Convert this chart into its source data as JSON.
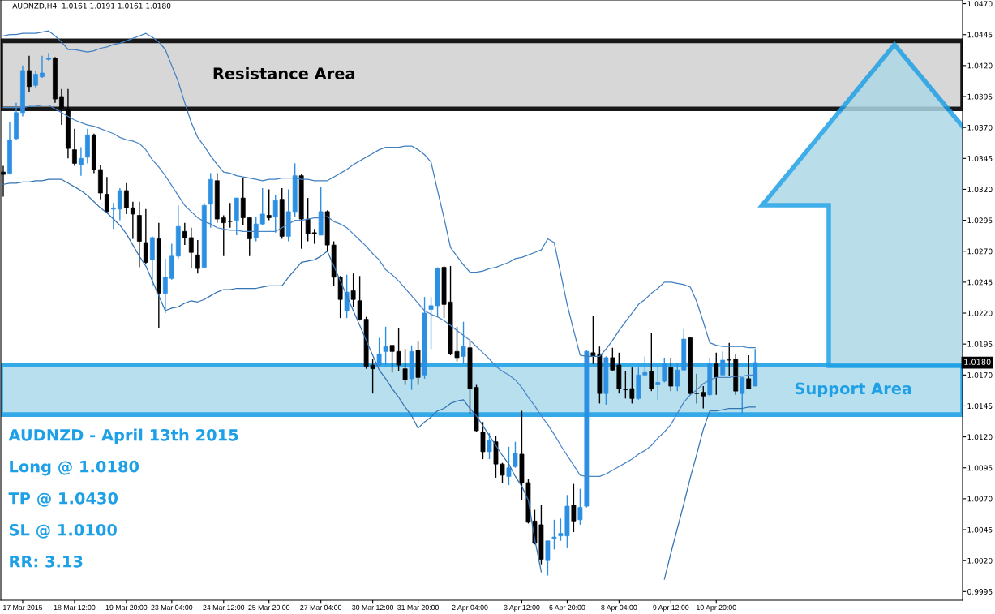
{
  "chart_data": {
    "type": "candlestick",
    "title": "AUDNZD,H4  1.0161 1.0191 1.0161 1.0180",
    "categories": [
      null,
      null,
      null,
      "17 Mar 2015",
      null,
      null,
      null,
      null,
      null,
      null,
      null,
      "18 Mar 12:00",
      null,
      null,
      null,
      null,
      null,
      null,
      null,
      "19 Mar 20:00",
      null,
      null,
      null,
      null,
      null,
      null,
      "23 Mar 04:00",
      null,
      null,
      null,
      null,
      null,
      null,
      null,
      "24 Mar 12:00",
      null,
      null,
      null,
      null,
      null,
      null,
      "25 Mar 20:00",
      null,
      null,
      null,
      null,
      null,
      null,
      null,
      "27 Mar 04:00",
      null,
      null,
      null,
      null,
      null,
      null,
      null,
      "30 Mar 12:00",
      null,
      null,
      null,
      null,
      null,
      null,
      "31 Mar 20:00",
      null,
      null,
      null,
      null,
      null,
      null,
      null,
      "2 Apr 04:00",
      null,
      null,
      null,
      null,
      null,
      null,
      null,
      "3 Apr 12:00",
      null,
      null,
      null,
      null,
      null,
      null,
      "6 Apr 20:00",
      null,
      null,
      null,
      null,
      null,
      null,
      null,
      "8 Apr 04:00",
      null,
      null,
      null,
      null,
      null,
      null,
      null,
      "9 Apr 12:00",
      null,
      null,
      null,
      null,
      null,
      null,
      "10 Apr 20:00",
      null,
      null,
      null,
      null,
      null,
      null,
      null,
      null,
      null,
      null,
      null,
      null,
      null,
      null,
      null,
      null,
      null,
      null,
      null,
      null,
      null,
      null,
      null,
      null,
      null,
      null,
      null,
      null,
      null,
      null,
      null,
      null,
      null,
      null,
      null,
      null,
      null
    ],
    "colors": [
      "#000000",
      "#2b8fe3",
      "#2b8fe3",
      "#2b8fe3",
      "#000000",
      "#2b8fe3",
      "#2b8fe3",
      "#2b8fe3",
      "#000000",
      "#000000",
      "#000000",
      "#000000",
      "#2b8fe3",
      "#2b8fe3",
      "#000000",
      "#000000",
      "#000000",
      "#2b8fe3",
      "#2b8fe3",
      "#000000",
      "#000000",
      "#000000",
      "#000000",
      "#2b8fe3",
      "#000000",
      "#2b8fe3",
      "#2b8fe3",
      "#2b8fe3",
      "#000000",
      "#000000",
      "#000000",
      "#2b8fe3",
      "#2b8fe3",
      "#000000",
      "#000000",
      "#000000",
      "#2b8fe3",
      "#000000",
      "#000000",
      "#2b8fe3",
      "#2b8fe3",
      "#000000",
      "#2b8fe3",
      "#000000",
      "#2b8fe3",
      "#2b8fe3",
      "#000000",
      "#000000",
      "#000000",
      "#2b8fe3",
      "#000000",
      "#000000",
      "#000000",
      "#2b8fe3",
      "#000000",
      "#000000",
      "#000000",
      "#000000",
      "#2b8fe3",
      "#2b8fe3",
      "#000000",
      "#000000",
      "#000000",
      "#2b8fe3",
      "#000000",
      "#2b8fe3",
      "#2b8fe3",
      "#2b8fe3",
      "#000000",
      "#000000",
      "#000000",
      "#2b8fe3",
      "#000000",
      "#000000",
      "#000000",
      "#2b8fe3",
      "#000000",
      "#000000",
      "#2b8fe3",
      "#2b8fe3",
      "#000000",
      "#000000",
      "#000000",
      "#000000",
      "#2b8fe3",
      "#2b8fe3",
      "#2b8fe3",
      "#2b8fe3",
      "#000000",
      "#2b8fe3",
      "#2b8fe3",
      "#000000",
      "#000000",
      "#2b8fe3",
      "#000000",
      "#000000",
      "#000000",
      "#000000",
      "#2b8fe3",
      "#2b8fe3",
      "#000000",
      "#2b8fe3",
      "#2b8fe3",
      "#000000",
      "#2b8fe3",
      "#2b8fe3",
      "#000000",
      "#000000",
      "#000000",
      "#2b8fe3",
      "#000000",
      "#2b8fe3",
      "#000000",
      "#000000",
      "#2b8fe3",
      "#000000",
      "#2b8fe3",
      null,
      null,
      null,
      null,
      null,
      null,
      null,
      null,
      null,
      null,
      null,
      null,
      null,
      null,
      null,
      null,
      null,
      null,
      null,
      null,
      null,
      null,
      null,
      null,
      null,
      null,
      null,
      null,
      null,
      null,
      null
    ],
    "ohlc": [
      [
        1.0334,
        1.0339,
        1.0314,
        1.0332
      ],
      [
        1.0333,
        1.0374,
        1.0332,
        1.036
      ],
      [
        1.0361,
        1.039,
        1.036,
        1.0382
      ],
      [
        1.0382,
        1.042,
        1.0379,
        1.0416
      ],
      [
        1.0416,
        1.0428,
        1.0399,
        1.0403
      ],
      [
        1.0404,
        1.0416,
        1.0402,
        1.0413
      ],
      [
        1.0411,
        1.0428,
        1.041,
        1.0414
      ],
      [
        1.0425,
        1.043,
        1.0424,
        1.0426
      ],
      [
        1.0426,
        1.0427,
        1.039,
        1.0393
      ],
      [
        1.0395,
        1.0401,
        1.0372,
        1.0385
      ],
      [
        1.0385,
        1.0401,
        1.0345,
        1.0353
      ],
      [
        1.0352,
        1.0369,
        1.0339,
        1.0341
      ],
      [
        1.034,
        1.0354,
        1.0331,
        1.0345
      ],
      [
        1.0346,
        1.0369,
        1.0341,
        1.0364
      ],
      [
        1.0364,
        1.0365,
        1.0333,
        1.0336
      ],
      [
        1.0336,
        1.034,
        1.0312,
        1.0317
      ],
      [
        1.0316,
        1.033,
        1.0301,
        1.0302
      ],
      [
        1.0304,
        1.0309,
        1.0288,
        1.0305
      ],
      [
        1.0304,
        1.0321,
        1.0295,
        1.0319
      ],
      [
        1.0319,
        1.0325,
        1.03,
        1.0305
      ],
      [
        1.0305,
        1.031,
        1.028,
        1.03
      ],
      [
        1.0299,
        1.031,
        1.0257,
        1.0278
      ],
      [
        1.0277,
        1.0304,
        1.026,
        1.0261
      ],
      [
        1.0263,
        1.0282,
        1.0242,
        1.0281
      ],
      [
        1.028,
        1.0293,
        1.0208,
        1.0236
      ],
      [
        1.0236,
        1.0264,
        1.022,
        1.0249
      ],
      [
        1.0248,
        1.0276,
        1.0247,
        1.0266
      ],
      [
        1.0266,
        1.0307,
        1.0264,
        1.029
      ],
      [
        1.0286,
        1.0293,
        1.0275,
        1.0281
      ],
      [
        1.0281,
        1.0289,
        1.0256,
        1.0269
      ],
      [
        1.0267,
        1.0279,
        1.0252,
        1.0256
      ],
      [
        1.0257,
        1.0309,
        1.0256,
        1.0307
      ],
      [
        1.0308,
        1.0333,
        1.0289,
        1.0328
      ],
      [
        1.0327,
        1.0333,
        1.0293,
        1.0296
      ],
      [
        1.0297,
        1.0299,
        1.0266,
        1.0293
      ],
      [
        1.0294,
        1.0309,
        1.0289,
        1.0294
      ],
      [
        1.0295,
        1.0313,
        1.0283,
        1.0313
      ],
      [
        1.0313,
        1.0329,
        1.0291,
        1.0297
      ],
      [
        1.0297,
        1.0298,
        1.0266,
        1.028
      ],
      [
        1.0281,
        1.0298,
        1.0278,
        1.0292
      ],
      [
        1.0292,
        1.0321,
        1.0291,
        1.03
      ],
      [
        1.0299,
        1.032,
        1.0295,
        1.0297
      ],
      [
        1.0298,
        1.0315,
        1.0285,
        1.0311
      ],
      [
        1.0312,
        1.0321,
        1.028,
        1.0282
      ],
      [
        1.0282,
        1.032,
        1.0278,
        1.0302
      ],
      [
        1.0302,
        1.0341,
        1.0298,
        1.0331
      ],
      [
        1.0331,
        1.0332,
        1.0272,
        1.0296
      ],
      [
        1.0296,
        1.0313,
        1.0278,
        1.0284
      ],
      [
        1.0285,
        1.0288,
        1.0276,
        1.0284
      ],
      [
        1.0283,
        1.0322,
        1.0283,
        1.0302
      ],
      [
        1.0302,
        1.0303,
        1.027,
        1.0275
      ],
      [
        1.0275,
        1.0278,
        1.0242,
        1.0249
      ],
      [
        1.0249,
        1.025,
        1.0216,
        1.0231
      ],
      [
        1.0222,
        1.0251,
        1.0216,
        1.0237
      ],
      [
        1.0238,
        1.0252,
        1.0225,
        1.0231
      ],
      [
        1.023,
        1.025,
        1.0214,
        1.0215
      ],
      [
        1.0215,
        1.0217,
        1.0175,
        1.0177
      ],
      [
        1.0178,
        1.0183,
        1.0155,
        1.0175
      ],
      [
        1.0178,
        1.02,
        1.0177,
        1.0187
      ],
      [
        1.0189,
        1.0209,
        1.0178,
        1.0193
      ],
      [
        1.0194,
        1.0194,
        1.0172,
        1.0189
      ],
      [
        1.0189,
        1.0208,
        1.0173,
        1.0178
      ],
      [
        1.0175,
        1.0191,
        1.0162,
        1.0166
      ],
      [
        1.0167,
        1.0194,
        1.0158,
        1.0189
      ],
      [
        1.019,
        1.0197,
        1.0162,
        1.0168
      ],
      [
        1.017,
        1.0233,
        1.0167,
        1.022
      ],
      [
        1.0223,
        1.0233,
        1.0191,
        1.0226
      ],
      [
        1.0226,
        1.0257,
        1.0217,
        1.0256
      ],
      [
        1.0257,
        1.0258,
        1.0216,
        1.0227
      ],
      [
        1.0229,
        1.0258,
        1.0186,
        1.0187
      ],
      [
        1.0189,
        1.0209,
        1.0181,
        1.0184
      ],
      [
        1.0185,
        1.0213,
        1.0179,
        1.0193
      ],
      [
        1.0192,
        1.0197,
        1.0139,
        1.0159
      ],
      [
        1.016,
        1.0162,
        1.0124,
        1.0125
      ],
      [
        1.0124,
        1.0132,
        1.0102,
        1.0108
      ],
      [
        1.0108,
        1.0123,
        1.0102,
        1.0117
      ],
      [
        1.0116,
        1.0121,
        1.0087,
        1.0098
      ],
      [
        1.0098,
        1.0099,
        1.0083,
        1.0089
      ],
      [
        1.0088,
        1.0112,
        1.0081,
        1.0095
      ],
      [
        1.0096,
        1.0116,
        1.0095,
        1.0107
      ],
      [
        1.0106,
        1.0141,
        1.0069,
        1.0083
      ],
      [
        1.0083,
        1.0086,
        1.005,
        1.0051
      ],
      [
        1.0052,
        1.0061,
        1.0033,
        1.0034
      ],
      [
        1.0049,
        1.0065,
        1.0017,
        1.0021
      ],
      [
        1.002,
        1.0036,
        1.0008,
        1.0036
      ],
      [
        1.0038,
        1.0053,
        1.0029,
        1.0039
      ],
      [
        1.004,
        1.0054,
        1.0036,
        1.0042
      ],
      [
        1.004,
        1.0073,
        1.003,
        1.0064
      ],
      [
        1.0065,
        1.0082,
        1.0043,
        1.0052
      ],
      [
        1.0053,
        1.0078,
        1.0049,
        1.0063
      ],
      [
        1.0064,
        1.019,
        1.0063,
        1.0189
      ],
      [
        1.0188,
        1.0218,
        1.0179,
        1.0185
      ],
      [
        1.0187,
        1.0193,
        1.0147,
        1.0155
      ],
      [
        1.0155,
        1.0185,
        1.0146,
        1.0184
      ],
      [
        1.0184,
        1.0192,
        1.0173,
        1.0174
      ],
      [
        1.0178,
        1.0188,
        1.0155,
        1.0159
      ],
      [
        1.0158,
        1.0173,
        1.0151,
        1.0158
      ],
      [
        1.0159,
        1.0176,
        1.0147,
        1.0151
      ],
      [
        1.0151,
        1.0176,
        1.015,
        1.017
      ],
      [
        1.017,
        1.0185,
        1.0169,
        1.0172
      ],
      [
        1.0173,
        1.0204,
        1.0157,
        1.0159
      ],
      [
        1.0162,
        1.0178,
        1.015,
        1.0164
      ],
      [
        1.0165,
        1.0184,
        1.0164,
        1.0179
      ],
      [
        1.0176,
        1.0184,
        1.0157,
        1.0161
      ],
      [
        1.0161,
        1.018,
        1.0157,
        1.0174
      ],
      [
        1.0174,
        1.0207,
        1.0173,
        1.0199
      ],
      [
        1.02,
        1.0201,
        1.0154,
        1.0155
      ],
      [
        1.0155,
        1.0171,
        1.0147,
        1.0155
      ],
      [
        1.0156,
        1.0161,
        1.0143,
        1.0153
      ],
      [
        1.0154,
        1.0184,
        1.0153,
        1.0179
      ],
      [
        1.0179,
        1.0188,
        1.0154,
        1.0168
      ],
      [
        1.017,
        1.0189,
        1.0169,
        1.0182
      ],
      [
        1.0182,
        1.0196,
        1.0169,
        1.0182
      ],
      [
        1.0183,
        1.0187,
        1.0154,
        1.0157
      ],
      [
        1.0155,
        1.0168,
        1.0139,
        1.0168
      ],
      [
        1.0167,
        1.0186,
        1.0159,
        1.0159
      ],
      [
        1.0161,
        1.0191,
        1.0161,
        1.018
      ],
      null,
      null,
      null,
      null,
      null,
      null,
      null,
      null,
      null,
      null,
      null,
      null,
      null,
      null,
      null,
      null,
      null,
      null,
      null,
      null,
      null,
      null,
      null,
      null,
      null,
      null,
      null,
      null,
      null,
      null,
      null
    ],
    "series": [
      {
        "type": "line",
        "color": "#3f7fc0",
        "values": [
          1.0444,
          1.0445,
          1.0445,
          1.0446,
          1.0446,
          1.0446,
          1.0447,
          1.0448,
          1.0444,
          1.0439,
          1.0433,
          1.0433,
          1.0432,
          1.0431,
          1.0432,
          1.0434,
          1.0435,
          1.0437,
          1.0438,
          1.044,
          1.0442,
          1.0444,
          1.0446,
          1.0443,
          1.0439,
          1.0433,
          1.042,
          1.0407,
          1.039,
          1.0374,
          1.0362,
          1.0355,
          1.0347,
          1.034,
          1.0334,
          1.0333,
          1.0331,
          1.033,
          1.0329,
          1.0328,
          1.0327,
          1.0328,
          1.0328,
          1.0329,
          1.0329,
          1.0329,
          1.0328,
          1.0328,
          1.0327,
          1.0327,
          1.0327,
          1.033,
          1.0333,
          1.0336,
          1.034,
          1.0343,
          1.0346,
          1.0349,
          1.0352,
          1.0354,
          1.0354,
          1.0354,
          1.0355,
          1.0355,
          1.0352,
          1.0348,
          1.0342,
          1.0319,
          1.0297,
          1.0273,
          1.0266,
          1.0259,
          1.0253,
          1.0253,
          1.0254,
          1.0256,
          1.0257,
          1.0259,
          1.0261,
          1.0264,
          1.0265,
          1.0267,
          1.0269,
          1.0271,
          1.028,
          1.0277,
          1.0252,
          1.0227,
          1.0206,
          1.0186,
          1.0185,
          1.0185,
          1.0185,
          1.0191,
          1.0198,
          1.0206,
          1.0213,
          1.022,
          1.0227,
          1.0231,
          1.0236,
          1.024,
          1.0245,
          1.0245,
          1.0244,
          1.0243,
          1.0241,
          1.0229,
          1.0213,
          1.0196,
          1.0194,
          1.0193,
          1.0193,
          1.0193,
          1.0193,
          1.0192,
          1.0192,
          null,
          null,
          null,
          null,
          null,
          null,
          null,
          null,
          null,
          null,
          null,
          null,
          null,
          null,
          null,
          null,
          null,
          null,
          null,
          null,
          null,
          null,
          null,
          null,
          null,
          null,
          null,
          null,
          null,
          null,
          null
        ]
      },
      {
        "type": "line",
        "color": "#4a86c8",
        "values": [
          1.0386,
          1.0386,
          1.0386,
          1.0386,
          1.0387,
          1.0387,
          1.0388,
          1.0388,
          1.0385,
          1.0382,
          1.0379,
          1.0376,
          1.0374,
          1.0372,
          1.0371,
          1.0369,
          1.0367,
          1.0365,
          1.0362,
          1.036,
          1.0359,
          1.0357,
          1.0352,
          1.0344,
          1.0338,
          1.0331,
          1.0323,
          1.0315,
          1.0307,
          1.0302,
          1.0297,
          1.0294,
          1.0292,
          1.0289,
          1.0288,
          1.0287,
          1.0287,
          1.0286,
          1.0286,
          1.0286,
          1.0286,
          1.0286,
          1.0286,
          1.0289,
          1.0292,
          1.0295,
          1.0295,
          1.0296,
          1.0297,
          1.0297,
          1.0298,
          1.0294,
          1.0292,
          1.0289,
          1.0284,
          1.0279,
          1.0274,
          1.0268,
          1.0263,
          1.0255,
          1.0251,
          1.0246,
          1.024,
          1.0234,
          1.0228,
          1.0222,
          1.0219,
          1.0217,
          1.0214,
          1.021,
          1.0206,
          1.0202,
          1.0198,
          1.0193,
          1.0188,
          1.0183,
          1.0177,
          1.0173,
          1.017,
          1.0166,
          1.016,
          1.0152,
          1.0145,
          1.0137,
          1.013,
          1.0122,
          1.0113,
          1.0105,
          1.0097,
          1.0089,
          1.0088,
          1.0088,
          1.0088,
          1.009,
          1.0093,
          1.0096,
          1.0099,
          1.0102,
          1.0106,
          1.0109,
          1.0113,
          1.0119,
          1.0124,
          1.013,
          1.0139,
          1.0148,
          1.0154,
          1.0158,
          1.0163,
          1.0166,
          1.0168,
          1.0168,
          1.0168,
          1.0169,
          1.0169,
          1.017,
          1.017,
          null,
          null,
          null,
          null,
          null,
          null,
          null,
          null,
          null,
          null,
          null,
          null,
          null,
          null,
          null,
          null,
          null,
          null,
          null,
          null,
          null,
          null,
          null,
          null,
          null,
          null,
          null,
          null,
          null,
          null,
          null
        ]
      },
      {
        "type": "line",
        "color": "#3374b3",
        "values": [
          1.0324,
          1.0325,
          1.0325,
          1.0326,
          1.0326,
          1.0327,
          1.0327,
          1.0328,
          1.0328,
          1.0328,
          1.0325,
          1.0322,
          1.0319,
          1.0315,
          1.031,
          1.0305,
          1.0301,
          1.0296,
          1.0291,
          1.0284,
          1.0275,
          1.0266,
          1.0258,
          1.0246,
          1.0234,
          1.0222,
          1.0224,
          1.0225,
          1.0228,
          1.023,
          1.0229,
          1.0231,
          1.0234,
          1.0237,
          1.0239,
          1.0239,
          1.024,
          1.024,
          1.024,
          1.024,
          1.0241,
          1.0242,
          1.0242,
          1.0242,
          1.0249,
          1.0255,
          1.0261,
          1.0262,
          1.0263,
          1.0266,
          1.027,
          1.0258,
          1.0246,
          1.0234,
          1.0222,
          1.021,
          1.0198,
          1.0186,
          1.0174,
          1.0167,
          1.0159,
          1.0152,
          1.0144,
          1.0137,
          1.0127,
          1.0132,
          1.0136,
          1.0141,
          1.0143,
          1.0147,
          1.0149,
          1.015,
          1.0143,
          1.0137,
          1.0129,
          1.0121,
          1.0113,
          1.0105,
          1.0098,
          1.0088,
          1.008,
          1.0069,
          1.0037,
          1.0011,
          null,
          null,
          null,
          null,
          null,
          null,
          null,
          null,
          null,
          null,
          null,
          null,
          null,
          null,
          null,
          null,
          null,
          null,
          1.0005,
          1.0026,
          1.0046,
          1.0066,
          1.0087,
          1.0106,
          1.0126,
          1.0141,
          1.0141,
          1.0142,
          1.0143,
          1.0143,
          1.0143,
          1.0144,
          1.0144,
          null,
          null,
          null,
          null,
          null,
          null,
          null,
          null,
          null,
          null,
          null,
          null,
          null,
          null,
          null,
          null,
          null,
          null,
          null,
          null,
          null,
          null,
          null,
          null,
          null,
          null,
          null,
          null,
          null,
          null,
          null
        ]
      }
    ],
    "ylim": [
      0.9988,
      1.0473
    ],
    "yticks": [
      0.9995,
      {
        "value": 1.002,
        "label": "1.0020"
      },
      1.0045,
      {
        "value": 1.007,
        "label": "1.0070"
      },
      1.0095,
      {
        "value": 1.012,
        "label": "1.0120"
      },
      1.0145,
      {
        "value": 1.017,
        "label": "1.0170"
      },
      1.0195,
      {
        "value": 1.022,
        "label": "1.0220"
      },
      1.0245,
      {
        "value": 1.027,
        "label": "1.0270"
      },
      1.0295,
      {
        "value": 1.032,
        "label": "1.0320"
      },
      1.0345,
      {
        "value": 1.037,
        "label": "1.0370"
      },
      1.0395,
      {
        "value": 1.042,
        "label": "1.0420"
      },
      1.0445,
      {
        "value": 1.047,
        "label": "1.0470"
      }
    ],
    "bands": [
      {
        "axis": "y",
        "from": 1.0385,
        "to": 1.044,
        "label": "Resistance Area",
        "color": "#d3d3d3"
      },
      {
        "axis": "y",
        "from": 1.0138,
        "to": 1.0178,
        "label": "Support Area",
        "color": "#b0dcec"
      }
    ],
    "annotations": [
      {
        "text": "1.0180",
        "y": 1.018
      },
      "AUDNZD - April 13th 2015",
      "Long @ 1.0180",
      "TP @ 1.0430",
      "SL @ 1.0100",
      "RR: 3.13"
    ]
  }
}
